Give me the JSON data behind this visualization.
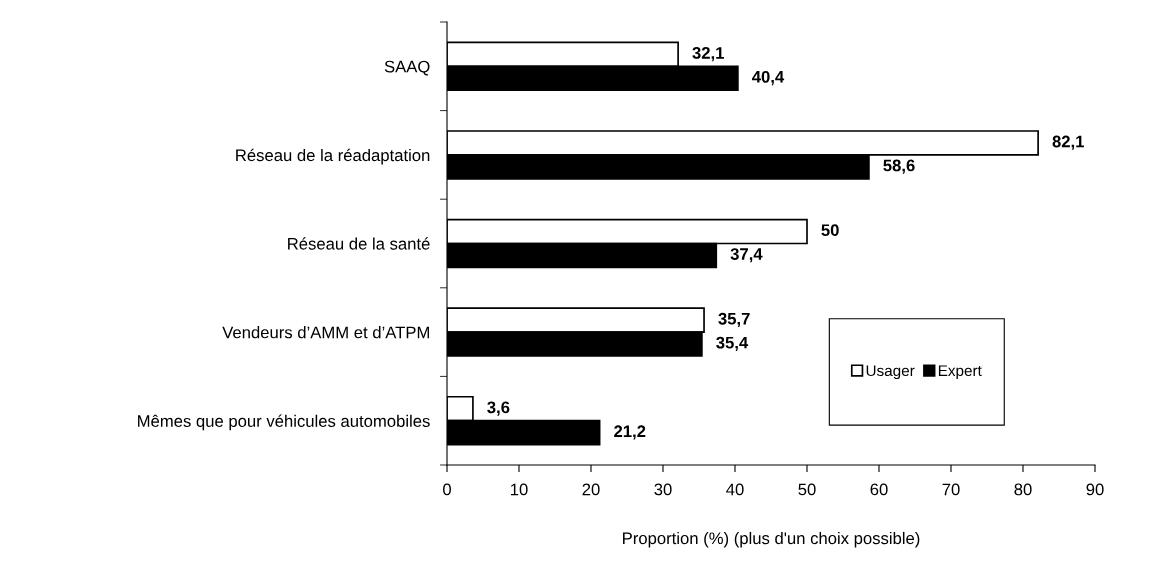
{
  "chart_data": {
    "type": "bar",
    "orientation": "horizontal",
    "xlabel": "Proportion (%) (plus d'un choix possible)",
    "categories": [
      "SAAQ",
      "Réseau de la réadaptation",
      "Réseau de la santé",
      "Vendeurs d’AMM et d’ATPM",
      "Mêmes que pour véhicules automobiles"
    ],
    "series": [
      {
        "name": "Usager",
        "color": "#ffffff",
        "values": [
          32.1,
          82.1,
          50,
          35.7,
          3.6
        ],
        "value_labels": [
          "32,1",
          "82,1",
          "50",
          "35,7",
          "3,6"
        ]
      },
      {
        "name": "Expert",
        "color": "#000000",
        "values": [
          40.4,
          58.6,
          37.4,
          35.4,
          21.2
        ],
        "value_labels": [
          "40,4",
          "58,6",
          "37,4",
          "35,4",
          "21,2"
        ]
      }
    ],
    "xlim": [
      0,
      90
    ],
    "xticks": [
      0,
      10,
      20,
      30,
      40,
      50,
      60,
      70,
      80,
      90
    ],
    "grid": false,
    "legend": "bottom right"
  }
}
